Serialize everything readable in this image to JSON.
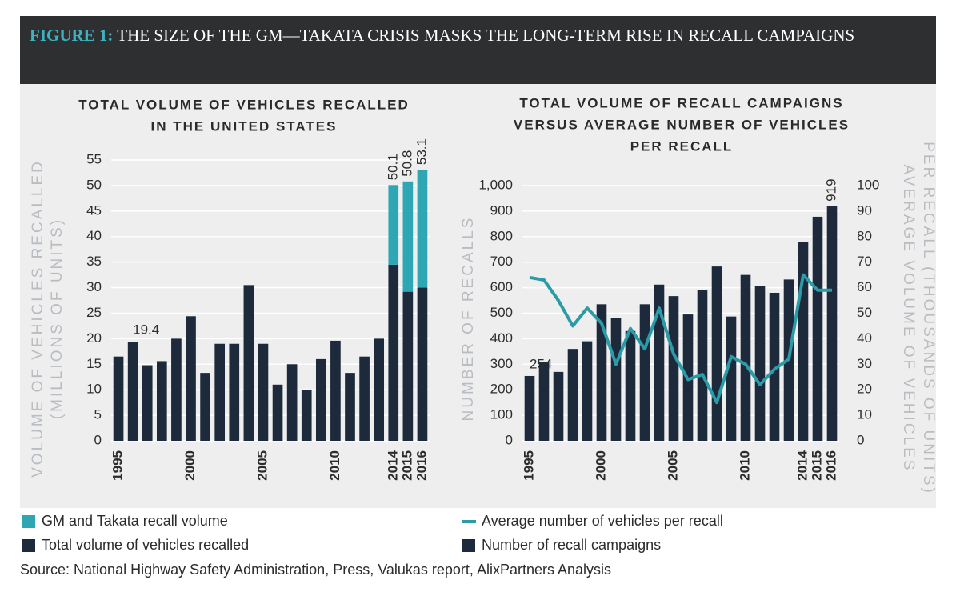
{
  "header": {
    "label": "FIGURE 1:",
    "title": "THE SIZE OF THE GM—TAKATA CRISIS MASKS THE LONG-TERM RISE IN RECALL CAMPAIGNS"
  },
  "chart_data": [
    {
      "type": "bar",
      "stacked": true,
      "title": [
        "TOTAL VOLUME OF VEHICLES RECALLED",
        "IN THE UNITED STATES"
      ],
      "ylabel": [
        "VOLUME OF VEHICLES RECALLED",
        "(MILLIONS OF UNITS)"
      ],
      "x": [
        1995,
        1996,
        1997,
        1998,
        1999,
        2000,
        2001,
        2002,
        2003,
        2004,
        2005,
        2006,
        2007,
        2008,
        2009,
        2010,
        2011,
        2012,
        2013,
        2014,
        2015,
        2016
      ],
      "xlim": [
        1994.5,
        2016.5
      ],
      "xticks": [
        1995,
        2000,
        2005,
        2010,
        2014,
        2015,
        2016
      ],
      "ylim": [
        0,
        55
      ],
      "yticks": [
        0,
        5,
        10,
        15,
        20,
        25,
        30,
        35,
        40,
        45,
        50,
        55
      ],
      "grid": true,
      "series": [
        {
          "name": "Total volume of vehicles recalled",
          "color": "#1c2a3b",
          "values": [
            16.5,
            19.4,
            14.8,
            15.6,
            20,
            24.4,
            13.3,
            19,
            19,
            30.5,
            19,
            11,
            15,
            10,
            16,
            19.6,
            13.3,
            16.5,
            20,
            34.5,
            29.2,
            30
          ]
        },
        {
          "name": "GM and Takata recall volume",
          "color": "#2fa6b4",
          "values": [
            null,
            null,
            null,
            null,
            null,
            null,
            null,
            null,
            null,
            null,
            null,
            null,
            null,
            null,
            null,
            null,
            null,
            null,
            null,
            15.6,
            21.6,
            23.1
          ]
        }
      ],
      "annotations": [
        {
          "x": 1996,
          "y": 19.4
        },
        {
          "x": 2014,
          "y": 50.1
        },
        {
          "x": 2015,
          "y": 50.8
        },
        {
          "x": 2016,
          "y": 53.1
        }
      ]
    },
    {
      "type": "bar-line",
      "title": [
        "TOTAL VOLUME OF RECALL CAMPAIGNS",
        "VERSUS AVERAGE NUMBER OF VEHICLES",
        "PER RECALL"
      ],
      "ylabel": [
        "NUMBER OF RECALLS"
      ],
      "y2label": [
        "AVERAGE VOLUME OF VEHICLES",
        "PER RECALL (THOUSANDS OF UNITS)"
      ],
      "x": [
        1995,
        1996,
        1997,
        1998,
        1999,
        2000,
        2001,
        2002,
        2003,
        2004,
        2005,
        2006,
        2007,
        2008,
        2009,
        2010,
        2011,
        2012,
        2013,
        2014,
        2015,
        2016
      ],
      "xlim": [
        1994.5,
        2016.5
      ],
      "xticks": [
        1995,
        2000,
        2005,
        2010,
        2014,
        2015,
        2016
      ],
      "ylim": [
        0,
        1000
      ],
      "yticks": [
        0,
        100,
        200,
        300,
        400,
        500,
        600,
        700,
        800,
        900,
        {
          "value": 1000,
          "label": "1,000"
        }
      ],
      "y2lim": [
        0,
        100
      ],
      "y2ticks": [
        0,
        10,
        20,
        30,
        40,
        50,
        60,
        70,
        80,
        90,
        100
      ],
      "grid": true,
      "series": [
        {
          "name": "Number of recall campaigns",
          "type": "bar",
          "color": "#1c2a3b",
          "values": [
            254,
            310,
            270,
            360,
            390,
            535,
            480,
            430,
            535,
            612,
            567,
            495,
            590,
            683,
            487,
            650,
            605,
            580,
            632,
            780,
            878,
            919
          ]
        },
        {
          "name": "Average number of vehicles per recall",
          "type": "line",
          "axis": "y2",
          "color": "#2b9ba8",
          "values": [
            64,
            63,
            55,
            45,
            52,
            46,
            30,
            44,
            36,
            52,
            34,
            24,
            26,
            15,
            33,
            30,
            22,
            28,
            32,
            65,
            59,
            59
          ]
        }
      ],
      "annotations": [
        {
          "x": 1995,
          "y": 254
        },
        {
          "x": 2016,
          "y": 919
        }
      ]
    }
  ],
  "source": "Source: National Highway Safety Administration, Press, Valukas report, AlixPartners Analysis"
}
